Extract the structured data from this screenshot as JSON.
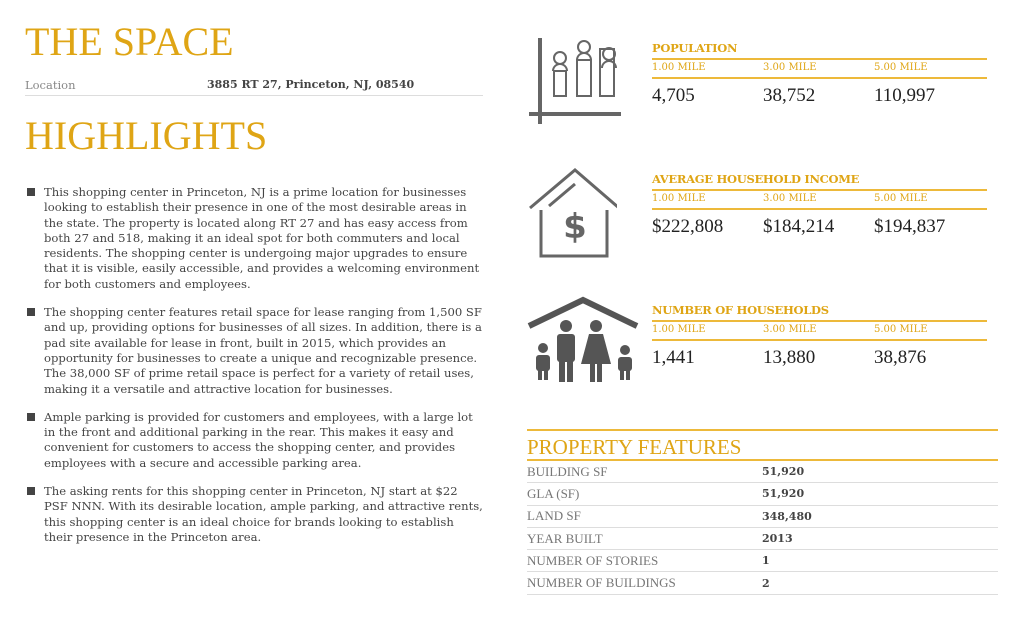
{
  "space": {
    "title": "THE SPACE",
    "location_label": "Location",
    "location_value": "3885 RT 27, Princeton, NJ, 08540"
  },
  "highlights": {
    "title": "HIGHLIGHTS",
    "items": [
      "This shopping center in Princeton, NJ is a prime location for businesses looking to establish their presence in one of the most desirable areas in the state. The property is located along RT 27 and has easy access from both 27 and 518, making it an ideal spot for both commuters and local residents. The shopping center is undergoing major upgrades to ensure that it is visible, easily accessible, and provides a welcoming environment for both customers and employees.",
      "The shopping center features retail space for lease ranging from 1,500 SF and up, providing options for businesses of all sizes. In addition, there is a pad site available for lease in front, built in 2015, which provides an opportunity for businesses to create a unique and recognizable presence. The 38,000 SF of prime retail space is perfect for a variety of retail uses, making it a versatile and attractive location for businesses.",
      "Ample parking is provided for customers and employees, with a large lot in the front and additional parking in the rear. This makes it easy and convenient for customers to access the shopping center, and provides employees with a secure and accessible parking area.",
      "The asking rents for this shopping center in Princeton, NJ start at $22 PSF NNN. With its desirable location, ample parking, and attractive rents, this shopping center is an ideal choice for brands looking to establish their presence in the Princeton area."
    ]
  },
  "demographics": [
    {
      "title": "POPULATION",
      "icon": "population-chart-icon",
      "radii": [
        "1.00 MILE",
        "3.00 MILE",
        "5.00 MILE"
      ],
      "values": [
        "4,705",
        "38,752",
        "110,997"
      ]
    },
    {
      "title": "AVERAGE HOUSEHOLD INCOME",
      "icon": "house-dollar-icon",
      "radii": [
        "1.00 MILE",
        "3.00 MILE",
        "5.00 MILE"
      ],
      "values": [
        "$222,808",
        "$184,214",
        "$194,837"
      ]
    },
    {
      "title": "NUMBER OF HOUSEHOLDS",
      "icon": "family-house-icon",
      "radii": [
        "1.00 MILE",
        "3.00 MILE",
        "5.00 MILE"
      ],
      "values": [
        "1,441",
        "13,880",
        "38,876"
      ]
    }
  ],
  "property_features": {
    "title": "PROPERTY FEATURES",
    "rows": [
      {
        "label": "BUILDING SF",
        "value": "51,920"
      },
      {
        "label": "GLA (SF)",
        "value": "51,920"
      },
      {
        "label": "LAND SF",
        "value": "348,480"
      },
      {
        "label": "YEAR BUILT",
        "value": "2013"
      },
      {
        "label": "NUMBER OF STORIES",
        "value": "1"
      },
      {
        "label": "NUMBER OF BUILDINGS",
        "value": "2"
      }
    ]
  },
  "colors": {
    "accent": "#DFA515",
    "text": "#444444",
    "icon": "#666666"
  }
}
